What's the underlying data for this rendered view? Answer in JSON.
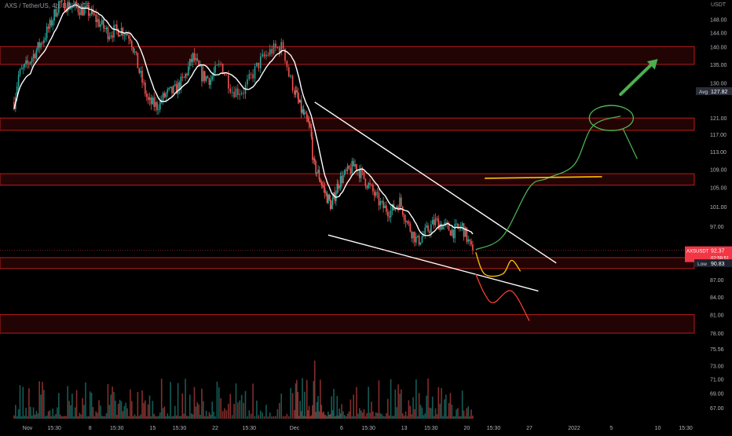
{
  "header": {
    "symbol": "AXS / TetherUS, 4h, BINANCE",
    "currency": "USDT"
  },
  "colors": {
    "background": "#000000",
    "bull": "#26a69a",
    "bear": "#ef5350",
    "zone_border": "#b71c1c",
    "zone_fill": "#3a0707",
    "ma_line": "#ffffff",
    "trendline": "#ffffff",
    "bull_projection": "#4caf50",
    "neutral_projection": "#ffc107",
    "bear_projection": "#f23f2f",
    "axis_text": "#b2b5be",
    "price_badge": "#f23645",
    "low_badge": "#1e222d",
    "avg_badge": "#2a2e39"
  },
  "chart_data": {
    "type": "candlestick",
    "symbol": "AXS / TetherUS",
    "interval": "4h",
    "exchange": "BINANCE",
    "y_scale": "log",
    "ylim": [
      65.5,
      152
    ],
    "y_ticks": [
      67.0,
      69.0,
      71.0,
      73.0,
      75.56,
      78.0,
      81.0,
      84.0,
      87.0,
      91.0,
      97.0,
      101.0,
      105.0,
      109.0,
      113.0,
      117.0,
      121.0,
      130.0,
      135.0,
      140.0,
      144.0,
      148.0
    ],
    "x_ticks": [
      "Nov",
      "15:30",
      "8",
      "15:30",
      "15",
      "15:30",
      "22",
      "15:30",
      "Dec",
      "6",
      "15:30",
      "13",
      "15:30",
      "20",
      "15:30",
      "27",
      "2022",
      "5",
      "10",
      "15:30"
    ],
    "x_tick_dates": [
      "2021-11-01",
      "2021-11-04",
      "2021-11-08",
      "2021-11-11",
      "2021-11-15",
      "2021-11-18",
      "2021-11-22",
      "2021-11-25",
      "2021-11-29",
      "2021-12-06",
      "2021-12-09",
      "2021-12-13",
      "2021-12-16",
      "2021-12-20",
      "2021-12-23",
      "2021-12-27",
      "2022-01-01",
      "2022-01-05",
      "2022-01-10",
      "2022-01-13"
    ],
    "last_price": 92.37,
    "last_price_label": "AXSUSDT",
    "countdown": "02:59:51",
    "avg_price": 127.82,
    "avg_label": "Avg",
    "low_price": 90.83,
    "low_label": "Low",
    "zones": [
      {
        "name": "resistance",
        "top": 140.0,
        "bottom": 135.0
      },
      {
        "name": "resistance",
        "top": 121.0,
        "bottom": 118.0
      },
      {
        "name": "resistance",
        "top": 108.0,
        "bottom": 105.5
      },
      {
        "name": "support",
        "top": 91.0,
        "bottom": 89.0
      },
      {
        "name": "support",
        "top": 81.0,
        "bottom": 78.0
      }
    ],
    "trendlines": [
      {
        "name": "wedge-upper",
        "start": [
          "2021-12-02",
          125.0
        ],
        "end": [
          "2021-12-30",
          90.0
        ]
      },
      {
        "name": "wedge-lower",
        "start": [
          "2021-12-04",
          95.3
        ],
        "end": [
          "2021-12-28",
          85.0
        ]
      }
    ],
    "scenarios": [
      {
        "name": "bullish",
        "path": [
          [
            "2021-12-21",
            92.5
          ],
          [
            "2021-12-24",
            95.0
          ],
          [
            "2021-12-27",
            105.0
          ],
          [
            "2021-12-29",
            107.0
          ],
          [
            "2022-01-01",
            110.0
          ],
          [
            "2022-01-03",
            119.0
          ],
          [
            "2022-01-06",
            121.5
          ]
        ]
      },
      {
        "name": "neutral",
        "path": [
          [
            "2021-12-21",
            92.0
          ],
          [
            "2021-12-22",
            88.0
          ],
          [
            "2021-12-24",
            88.0
          ],
          [
            "2021-12-25",
            90.5
          ],
          [
            "2021-12-26",
            88.5
          ]
        ]
      },
      {
        "name": "bearish",
        "path": [
          [
            "2021-12-21",
            88.0
          ],
          [
            "2021-12-22",
            84.5
          ],
          [
            "2021-12-23",
            83.0
          ],
          [
            "2021-12-25",
            85.0
          ],
          [
            "2021-12-27",
            80.0
          ]
        ]
      }
    ],
    "target_circle": {
      "center": [
        "2022-01-05",
        121.0
      ]
    },
    "bullish_arrow": {
      "start": [
        "2022-01-06",
        127.0
      ],
      "end": [
        "2022-01-10",
        136.5
      ]
    },
    "target_level": 107.0
  }
}
